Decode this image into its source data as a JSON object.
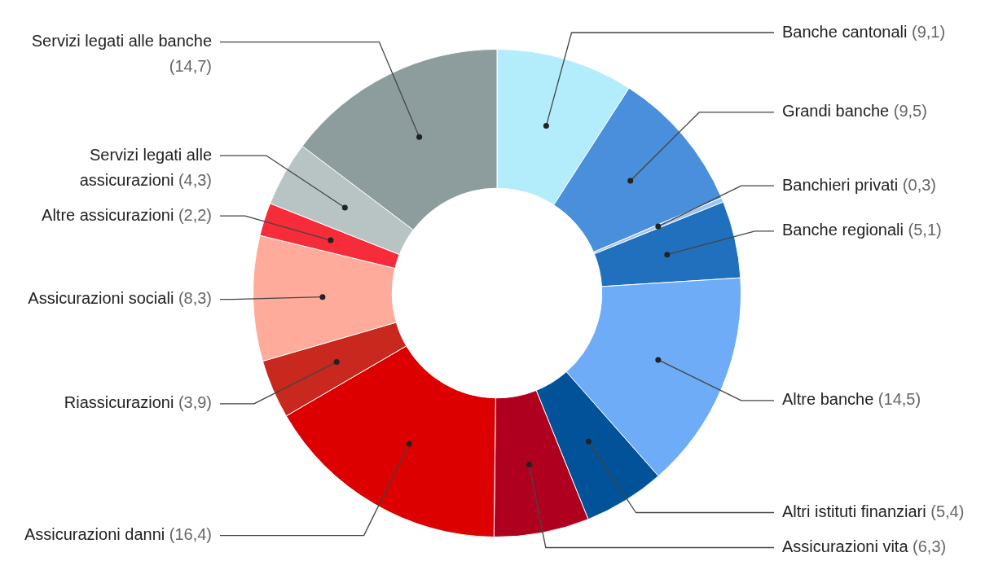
{
  "chart_data": {
    "type": "donut",
    "categories": [
      "Banche cantonali",
      "Grandi banche",
      "Banchieri privati",
      "Banche regionali",
      "Altre banche",
      "Altri istituti finanziari",
      "Assicurazioni vita",
      "Assicurazioni danni",
      "Riassicurazioni",
      "Assicurazioni sociali",
      "Altre assicurazioni",
      "Servizi legati alle assicurazioni",
      "Servizi legati alle banche"
    ],
    "values": [
      9.1,
      9.5,
      0.3,
      5.1,
      14.5,
      5.4,
      6.3,
      16.4,
      3.9,
      8.3,
      2.2,
      4.3,
      14.7
    ],
    "colors": [
      "#b3edfc",
      "#4a8fdb",
      "#9fc6f0",
      "#2170bd",
      "#6eacf7",
      "#025299",
      "#b00020",
      "#dc0000",
      "#c8281e",
      "#ffab9b",
      "#f72c3a",
      "#b8c4c4",
      "#8d9c9c"
    ],
    "value_labels": [
      "(9,1)",
      "(9,5)",
      "(0,3)",
      "(5,1)",
      "(14,5)",
      "(5,4)",
      "(6,3)",
      "(16,4)",
      "(3,9)",
      "(8,3)",
      "(2,2)",
      "(4,3)",
      "(14,7)"
    ],
    "legend": false
  }
}
